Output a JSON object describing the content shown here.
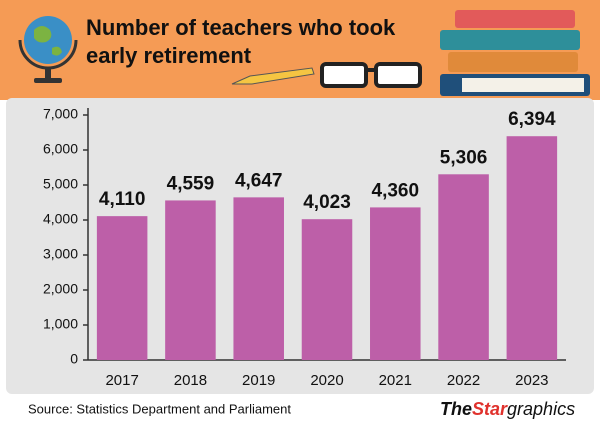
{
  "chart_data": {
    "type": "bar",
    "title": "Number of teachers who took early retirement",
    "categories": [
      "2017",
      "2018",
      "2019",
      "2020",
      "2021",
      "2022",
      "2023"
    ],
    "values": [
      4110,
      4559,
      4647,
      4023,
      4360,
      5306,
      6394
    ],
    "value_labels": [
      "4,110",
      "4,559",
      "4,647",
      "4,023",
      "4,360",
      "5,306",
      "6,394"
    ],
    "color": "#bd5fa8",
    "ylim": [
      0,
      7000
    ],
    "yticks": [
      0,
      {
        "value": 1000,
        "label": "1,000"
      },
      {
        "value": 2000,
        "label": "2,000"
      },
      {
        "value": 3000,
        "label": "3,000"
      },
      {
        "value": 4000,
        "label": "4,000"
      },
      {
        "value": 5000,
        "label": "5,000"
      },
      {
        "value": 6000,
        "label": "6,000"
      },
      {
        "value": 7000,
        "label": "7,000"
      }
    ],
    "grid": false,
    "source": "Source: Statistics Department and Parliament",
    "credit": [
      "The",
      "Star",
      "graphics"
    ]
  }
}
